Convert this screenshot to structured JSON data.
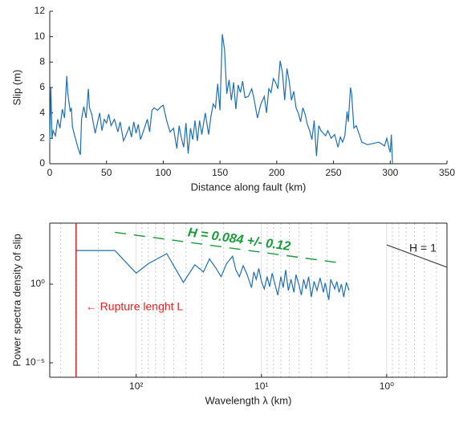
{
  "chart_data": [
    {
      "type": "line",
      "xlabel": "Distance along fault (km)",
      "ylabel": "Slip (m)",
      "color": "#1f6fb5",
      "x": [
        0,
        1,
        2,
        3,
        5,
        7,
        9,
        11,
        13,
        15,
        16,
        18,
        19,
        20,
        22,
        25,
        27,
        28,
        30,
        32,
        34,
        35,
        37,
        40,
        42,
        44,
        46,
        48,
        50,
        52,
        54,
        57,
        60,
        62,
        65,
        67,
        70,
        72,
        74,
        76,
        78,
        80,
        83,
        86,
        88,
        90,
        92,
        95,
        98,
        100,
        103,
        106,
        109,
        112,
        114,
        116,
        118,
        120,
        122,
        124,
        126,
        128,
        130,
        132,
        134,
        137,
        140,
        142,
        144,
        146,
        148,
        150,
        152,
        154,
        156,
        158,
        160,
        162,
        164,
        166,
        168,
        170,
        172,
        175,
        178,
        180,
        183,
        186,
        189,
        191,
        193,
        195,
        197,
        199,
        201,
        203,
        205,
        207,
        209,
        211,
        213,
        215,
        217,
        219,
        221,
        223,
        225,
        227,
        229,
        231,
        233,
        235,
        237,
        239,
        241,
        243,
        245,
        248,
        251,
        254,
        256,
        258,
        260,
        262,
        263,
        265,
        266,
        268,
        270,
        272,
        275,
        280,
        285,
        290,
        295,
        297,
        299,
        300,
        301,
        302
      ],
      "values": [
        1.6,
        6.0,
        2.0,
        2.6,
        2.2,
        3.5,
        2.8,
        4.3,
        3.6,
        6.9,
        5.5,
        4.1,
        4.4,
        2.9,
        2.2,
        1.2,
        0.7,
        3.5,
        4.5,
        3.6,
        5.9,
        4.4,
        3.9,
        2.4,
        3.2,
        4.0,
        2.6,
        3.5,
        3.2,
        3.9,
        3.0,
        3.5,
        2.5,
        3.3,
        1.8,
        2.2,
        2.9,
        2.1,
        3.3,
        2.4,
        3.1,
        1.9,
        2.7,
        3.5,
        2.5,
        4.2,
        4.4,
        4.2,
        4.5,
        4.6,
        3.4,
        2.5,
        2.8,
        1.2,
        3.0,
        2.0,
        1.3,
        3.2,
        0.8,
        2.8,
        1.9,
        3.4,
        1.8,
        3.4,
        2.3,
        4.0,
        2.3,
        3.7,
        4.7,
        4.4,
        6.3,
        4.2,
        10.2,
        9.0,
        5.5,
        6.6,
        5.0,
        6.4,
        4.3,
        6.2,
        5.6,
        6.5,
        5.2,
        5.3,
        5.9,
        5.1,
        3.6,
        4.7,
        5.3,
        4.0,
        5.9,
        5.6,
        6.7,
        6.4,
        5.9,
        8.1,
        7.2,
        5.0,
        7.5,
        6.5,
        5.0,
        5.7,
        4.4,
        4.0,
        3.3,
        4.4,
        3.9,
        3.1,
        2.6,
        1.9,
        3.4,
        0.6,
        3.0,
        2.6,
        2.4,
        2.2,
        2.6,
        2.0,
        2.3,
        1.3,
        2.1,
        1.7,
        2.2,
        4.1,
        3.3,
        6.0,
        5.5,
        2.8,
        3.0,
        2.5,
        1.7,
        1.5,
        1.6,
        1.7,
        1.4,
        2.0,
        1.2,
        0.9,
        2.3,
        0
      ],
      "xlim": [
        0,
        350
      ],
      "xticks": [
        0,
        50,
        100,
        150,
        200,
        250,
        300,
        350
      ],
      "ylim": [
        0,
        12
      ],
      "yticks": [
        0,
        2,
        4,
        6,
        8,
        10,
        12
      ],
      "grid": false,
      "box": false
    },
    {
      "type": "line",
      "xlabel": "Wavelength λ (km)",
      "ylabel": "Power spectra density of slip",
      "xscale": "log",
      "yscale": "log",
      "grid": true,
      "box": true,
      "xlim": [
        490,
        0.33
      ],
      "ylim": [
        1.2e-06,
        7600
      ],
      "xticks": [
        {
          "value": 100,
          "label": "10²"
        },
        {
          "value": 10,
          "label": "10¹"
        },
        {
          "value": 1,
          "label": "10⁰"
        }
      ],
      "x_minor_grid": [
        400,
        300,
        200,
        90,
        80,
        70,
        60,
        50,
        40,
        30,
        20,
        9,
        8,
        7,
        6,
        5,
        4,
        3,
        2,
        0.9,
        0.8,
        0.7,
        0.6,
        0.5,
        0.4
      ],
      "yticks": [
        {
          "value": 1,
          "label": "10⁰"
        },
        {
          "value": 1e-05,
          "label": "10⁻⁵"
        }
      ],
      "rupture_length": 302,
      "rupture_color": "#e8201e",
      "rupture_label": "← Rupture lenght L",
      "series": [
        {
          "color": "#1f6fb5",
          "x": [
            302,
            148,
            100,
            80,
            57,
            42,
            34,
            29,
            26,
            23,
            21,
            19,
            17,
            16,
            15,
            14,
            13,
            12,
            11.5,
            11,
            10.5,
            10,
            9.5,
            9,
            8.6,
            8.2,
            7.8,
            7.4,
            7,
            6.7,
            6.4,
            6.1,
            5.8,
            5.5,
            5.3,
            5,
            4.8,
            4.6,
            4.4,
            4.2,
            4,
            3.8,
            3.6,
            3.4,
            3.2,
            3.1,
            2.9,
            2.8,
            2.6,
            2.5,
            2.4,
            2.3,
            2.2,
            2.1,
            2.0
          ],
          "values": [
            138,
            138,
            5,
            20,
            87,
            1.3,
            17,
            6,
            40,
            10,
            3,
            20,
            60,
            8,
            3,
            15,
            4,
            0.6,
            6,
            2,
            10,
            1.5,
            0.5,
            3,
            0.7,
            5,
            1,
            0.2,
            3,
            0.6,
            8,
            0.4,
            2,
            0.3,
            4,
            0.8,
            0.2,
            2,
            0.5,
            3,
            0.15,
            1.5,
            0.4,
            2.5,
            0.3,
            1.2,
            0.1,
            2,
            0.5,
            1.5,
            0.3,
            1,
            0.15,
            1.3,
            0.4
          ]
        },
        {
          "color": "#1a9a3a",
          "dashed": true,
          "x": [
            148,
            2.5
          ],
          "values": [
            2000,
            24
          ]
        },
        {
          "color": "#444444",
          "x": [
            1,
            0.33
          ],
          "values": [
            316,
            12
          ]
        }
      ],
      "fit_label": "H = 0.084 +/- 0.12",
      "slope_label": "H = 1"
    }
  ]
}
